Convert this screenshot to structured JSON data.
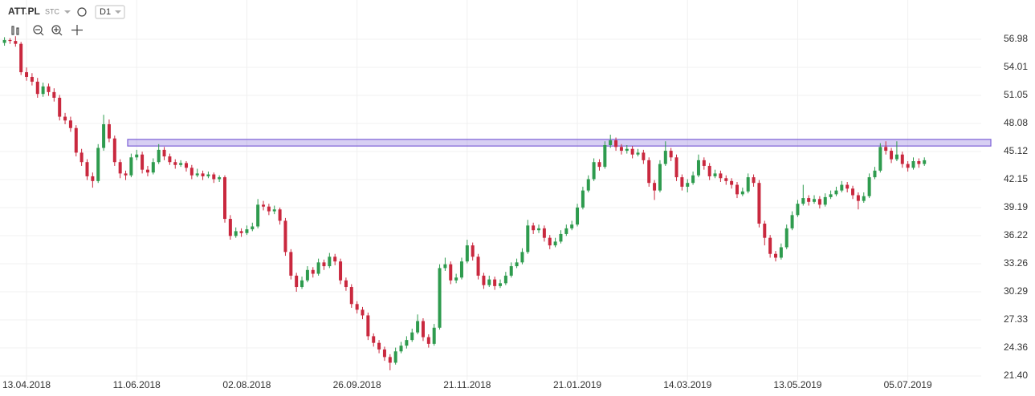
{
  "chart_data": {
    "type": "candlestick",
    "symbol": "ATT.PL",
    "source": "STC",
    "interval": "D1",
    "categories": [
      null,
      null,
      null,
      null,
      "13.04.2018",
      null,
      null,
      null,
      null,
      null,
      null,
      null,
      null,
      null,
      null,
      null,
      null,
      null,
      null,
      null,
      null,
      null,
      null,
      null,
      "11.06.2018",
      null,
      null,
      null,
      null,
      null,
      null,
      null,
      null,
      null,
      null,
      null,
      null,
      null,
      null,
      null,
      null,
      null,
      null,
      null,
      "02.08.2018",
      null,
      null,
      null,
      null,
      null,
      null,
      null,
      null,
      null,
      null,
      null,
      null,
      null,
      null,
      null,
      null,
      null,
      null,
      null,
      "26.09.2018",
      null,
      null,
      null,
      null,
      null,
      null,
      null,
      null,
      null,
      null,
      null,
      null,
      null,
      null,
      null,
      null,
      null,
      null,
      null,
      "21.11.2018",
      null,
      null,
      null,
      null,
      null,
      null,
      null,
      null,
      null,
      null,
      null,
      null,
      null,
      null,
      null,
      null,
      null,
      null,
      null,
      "21.01.2019",
      null,
      null,
      null,
      null,
      null,
      null,
      null,
      null,
      null,
      null,
      null,
      null,
      null,
      null,
      null,
      null,
      null,
      null,
      null,
      "14.03.2019",
      null,
      null,
      null,
      null,
      null,
      null,
      null,
      null,
      null,
      null,
      null,
      null,
      null,
      null,
      null,
      null,
      null,
      null,
      null,
      "13.05.2019",
      null,
      null,
      null,
      null,
      null,
      null,
      null,
      null,
      null,
      null,
      null,
      null,
      null,
      null,
      null,
      null,
      null,
      null,
      null,
      "05.07.2019",
      null,
      null,
      null
    ],
    "values": [
      [
        56.6,
        57.2,
        56.3,
        56.9
      ],
      [
        56.9,
        57.1,
        56.5,
        56.8
      ],
      [
        56.8,
        57.3,
        56.2,
        56.5
      ],
      [
        56.5,
        56.7,
        53.2,
        53.5
      ],
      [
        53.5,
        54.0,
        52.6,
        53.0
      ],
      [
        53.0,
        53.4,
        52.1,
        52.5
      ],
      [
        52.5,
        52.9,
        50.8,
        51.2
      ],
      [
        51.2,
        52.4,
        50.9,
        52.0
      ],
      [
        52.0,
        52.3,
        51.0,
        51.4
      ],
      [
        51.4,
        51.8,
        50.4,
        50.8
      ],
      [
        50.8,
        51.1,
        48.4,
        48.8
      ],
      [
        48.8,
        49.2,
        48.0,
        48.4
      ],
      [
        48.4,
        48.8,
        47.2,
        47.6
      ],
      [
        47.6,
        47.9,
        44.6,
        45.0
      ],
      [
        45.0,
        45.4,
        43.6,
        44.0
      ],
      [
        44.0,
        44.3,
        42.1,
        42.5
      ],
      [
        42.5,
        42.9,
        41.3,
        42.0
      ],
      [
        42.0,
        45.9,
        41.8,
        45.5
      ],
      [
        45.5,
        49.0,
        45.2,
        48.0
      ],
      [
        48.0,
        48.5,
        46.1,
        46.5
      ],
      [
        46.5,
        46.8,
        43.6,
        44.0
      ],
      [
        44.0,
        44.3,
        42.3,
        42.8
      ],
      [
        42.8,
        43.1,
        42.1,
        42.6
      ],
      [
        42.6,
        44.9,
        42.4,
        44.5
      ],
      [
        44.5,
        45.3,
        44.2,
        44.8
      ],
      [
        44.8,
        45.1,
        42.8,
        43.2
      ],
      [
        43.2,
        43.6,
        42.5,
        42.9
      ],
      [
        42.9,
        44.4,
        42.7,
        44.0
      ],
      [
        44.0,
        45.9,
        43.8,
        45.3
      ],
      [
        45.3,
        45.6,
        44.2,
        44.6
      ],
      [
        44.6,
        44.9,
        43.7,
        44.0
      ],
      [
        44.0,
        44.3,
        43.3,
        43.7
      ],
      [
        43.7,
        44.2,
        43.5,
        43.9
      ],
      [
        43.9,
        44.1,
        43.0,
        43.4
      ],
      [
        43.4,
        43.7,
        42.2,
        42.6
      ],
      [
        42.6,
        43.3,
        42.4,
        42.8
      ],
      [
        42.8,
        43.1,
        42.1,
        42.5
      ],
      [
        42.5,
        43.0,
        42.3,
        42.7
      ],
      [
        42.7,
        42.9,
        41.8,
        42.2
      ],
      [
        42.2,
        42.6,
        41.9,
        42.4
      ],
      [
        42.4,
        42.6,
        37.6,
        38.0
      ],
      [
        38.0,
        38.4,
        35.8,
        36.2
      ],
      [
        36.2,
        37.1,
        36.0,
        36.7
      ],
      [
        36.7,
        37.0,
        36.1,
        36.5
      ],
      [
        36.5,
        37.3,
        36.3,
        36.9
      ],
      [
        36.9,
        37.6,
        36.7,
        37.2
      ],
      [
        37.2,
        40.1,
        37.0,
        39.5
      ],
      [
        39.5,
        39.9,
        38.9,
        39.3
      ],
      [
        39.3,
        39.6,
        38.4,
        38.8
      ],
      [
        38.8,
        39.4,
        38.5,
        39.0
      ],
      [
        39.0,
        39.2,
        37.4,
        37.8
      ],
      [
        37.8,
        38.1,
        34.1,
        34.5
      ],
      [
        34.5,
        34.8,
        31.6,
        32.0
      ],
      [
        32.0,
        32.3,
        30.3,
        30.8
      ],
      [
        30.8,
        31.9,
        30.6,
        31.5
      ],
      [
        31.5,
        33.0,
        31.3,
        32.6
      ],
      [
        32.6,
        32.9,
        31.8,
        32.2
      ],
      [
        32.2,
        33.8,
        32.0,
        33.4
      ],
      [
        33.4,
        33.7,
        32.6,
        33.0
      ],
      [
        33.0,
        34.4,
        32.8,
        34.0
      ],
      [
        34.0,
        34.3,
        33.1,
        33.5
      ],
      [
        33.5,
        33.8,
        31.1,
        31.5
      ],
      [
        31.5,
        31.8,
        30.4,
        30.8
      ],
      [
        30.8,
        31.1,
        28.6,
        29.0
      ],
      [
        29.0,
        29.3,
        28.0,
        28.4
      ],
      [
        28.4,
        28.7,
        27.4,
        27.8
      ],
      [
        27.8,
        28.1,
        25.2,
        25.6
      ],
      [
        25.6,
        25.9,
        24.5,
        24.9
      ],
      [
        24.9,
        25.2,
        23.8,
        24.2
      ],
      [
        24.2,
        24.5,
        23.0,
        23.4
      ],
      [
        23.4,
        23.7,
        22.0,
        22.8
      ],
      [
        22.8,
        24.4,
        22.6,
        24.0
      ],
      [
        24.0,
        25.0,
        23.8,
        24.6
      ],
      [
        24.6,
        25.6,
        24.3,
        25.2
      ],
      [
        25.2,
        26.4,
        25.0,
        26.0
      ],
      [
        26.0,
        27.9,
        25.8,
        27.2
      ],
      [
        27.2,
        27.5,
        25.1,
        25.5
      ],
      [
        25.5,
        25.8,
        24.4,
        24.8
      ],
      [
        24.8,
        26.9,
        24.6,
        26.5
      ],
      [
        26.5,
        33.2,
        26.3,
        32.8
      ],
      [
        32.8,
        33.9,
        32.5,
        33.2
      ],
      [
        33.2,
        33.5,
        31.1,
        31.5
      ],
      [
        31.5,
        32.2,
        31.2,
        31.8
      ],
      [
        31.8,
        33.9,
        31.6,
        33.5
      ],
      [
        33.5,
        35.8,
        33.3,
        35.2
      ],
      [
        35.2,
        35.5,
        33.6,
        34.0
      ],
      [
        34.0,
        34.3,
        31.6,
        32.0
      ],
      [
        32.0,
        32.3,
        30.6,
        31.0
      ],
      [
        31.0,
        32.0,
        30.8,
        31.6
      ],
      [
        31.6,
        31.9,
        30.5,
        30.9
      ],
      [
        30.9,
        31.6,
        30.7,
        31.2
      ],
      [
        31.2,
        32.4,
        31.0,
        32.0
      ],
      [
        32.0,
        33.4,
        31.8,
        33.0
      ],
      [
        33.0,
        33.8,
        32.8,
        33.4
      ],
      [
        33.4,
        34.9,
        33.2,
        34.5
      ],
      [
        34.5,
        37.9,
        34.3,
        37.3
      ],
      [
        37.3,
        37.6,
        36.4,
        36.8
      ],
      [
        36.8,
        37.4,
        36.5,
        37.0
      ],
      [
        37.0,
        37.3,
        35.6,
        36.0
      ],
      [
        36.0,
        36.3,
        34.8,
        35.2
      ],
      [
        35.2,
        36.0,
        35.0,
        35.6
      ],
      [
        35.6,
        36.8,
        35.4,
        36.4
      ],
      [
        36.4,
        37.4,
        36.2,
        37.0
      ],
      [
        37.0,
        37.8,
        36.8,
        37.4
      ],
      [
        37.4,
        39.6,
        37.2,
        39.2
      ],
      [
        39.2,
        41.4,
        39.0,
        41.0
      ],
      [
        41.0,
        42.6,
        40.8,
        42.2
      ],
      [
        42.2,
        44.4,
        42.0,
        44.0
      ],
      [
        44.0,
        44.3,
        43.1,
        43.5
      ],
      [
        43.5,
        46.2,
        43.3,
        45.8
      ],
      [
        45.8,
        46.9,
        45.5,
        46.3
      ],
      [
        46.3,
        46.6,
        45.2,
        45.6
      ],
      [
        45.6,
        45.9,
        44.8,
        45.2
      ],
      [
        45.2,
        45.8,
        44.9,
        45.4
      ],
      [
        45.4,
        45.7,
        44.4,
        44.8
      ],
      [
        44.8,
        45.4,
        44.6,
        45.0
      ],
      [
        45.0,
        45.3,
        43.8,
        44.2
      ],
      [
        44.2,
        44.5,
        41.4,
        41.8
      ],
      [
        41.8,
        42.1,
        40.0,
        41.0
      ],
      [
        41.0,
        44.2,
        40.8,
        43.8
      ],
      [
        43.8,
        46.2,
        43.6,
        45.2
      ],
      [
        45.2,
        45.5,
        44.1,
        44.5
      ],
      [
        44.5,
        44.8,
        42.0,
        42.4
      ],
      [
        42.4,
        42.7,
        41.0,
        41.4
      ],
      [
        41.4,
        42.2,
        40.8,
        41.8
      ],
      [
        41.8,
        43.0,
        41.6,
        42.6
      ],
      [
        42.6,
        44.8,
        42.4,
        44.2
      ],
      [
        44.2,
        44.5,
        43.2,
        43.6
      ],
      [
        43.6,
        43.9,
        42.1,
        42.5
      ],
      [
        42.5,
        43.2,
        42.3,
        42.8
      ],
      [
        42.8,
        43.1,
        41.9,
        42.3
      ],
      [
        42.3,
        42.6,
        41.6,
        42.0
      ],
      [
        42.0,
        42.3,
        41.2,
        41.6
      ],
      [
        41.6,
        41.9,
        40.2,
        40.6
      ],
      [
        40.6,
        41.3,
        40.4,
        40.9
      ],
      [
        40.9,
        42.8,
        40.7,
        42.4
      ],
      [
        42.4,
        42.7,
        41.4,
        41.8
      ],
      [
        41.8,
        42.1,
        37.1,
        37.5
      ],
      [
        37.5,
        37.8,
        35.2,
        36.0
      ],
      [
        36.0,
        36.3,
        33.9,
        34.3
      ],
      [
        34.3,
        34.6,
        33.5,
        33.9
      ],
      [
        33.9,
        35.4,
        33.7,
        35.0
      ],
      [
        35.0,
        37.4,
        34.8,
        37.0
      ],
      [
        37.0,
        38.8,
        36.8,
        38.4
      ],
      [
        38.4,
        40.0,
        38.2,
        39.6
      ],
      [
        39.6,
        41.6,
        39.4,
        40.2
      ],
      [
        40.2,
        40.5,
        39.4,
        39.8
      ],
      [
        39.8,
        40.5,
        39.6,
        40.1
      ],
      [
        40.1,
        40.4,
        39.1,
        39.5
      ],
      [
        39.5,
        40.7,
        39.3,
        40.3
      ],
      [
        40.3,
        41.0,
        40.1,
        40.6
      ],
      [
        40.6,
        41.4,
        40.4,
        41.0
      ],
      [
        41.0,
        42.0,
        40.8,
        41.6
      ],
      [
        41.6,
        41.9,
        40.8,
        41.2
      ],
      [
        41.2,
        41.5,
        40.1,
        40.5
      ],
      [
        40.5,
        40.8,
        39.0,
        39.9
      ],
      [
        39.9,
        40.8,
        39.7,
        40.4
      ],
      [
        40.4,
        42.8,
        40.2,
        42.4
      ],
      [
        42.4,
        43.5,
        42.2,
        43.1
      ],
      [
        43.1,
        46.0,
        42.9,
        45.6
      ],
      [
        45.6,
        46.2,
        44.8,
        45.2
      ],
      [
        45.2,
        45.5,
        43.9,
        44.3
      ],
      [
        44.3,
        46.2,
        44.1,
        44.8
      ],
      [
        44.8,
        45.1,
        43.4,
        43.8
      ],
      [
        43.8,
        44.1,
        43.0,
        43.4
      ],
      [
        43.4,
        44.5,
        43.2,
        44.1
      ],
      [
        44.1,
        44.4,
        43.4,
        43.8
      ],
      [
        43.8,
        44.5,
        43.6,
        44.2
      ]
    ],
    "up_color": "#2e9b4e",
    "down_color": "#c9283e",
    "zone": [
      45.7,
      46.4
    ],
    "zone_color": "#7b5fd6",
    "ylim": [
      21.4,
      56.98
    ],
    "yticks": [
      {
        "value": 21.4,
        "label": "21.40"
      },
      24.36,
      27.33,
      30.29,
      33.26,
      36.22,
      39.19,
      42.15,
      45.12,
      48.08,
      51.05,
      54.01,
      56.98
    ],
    "grid": true
  }
}
